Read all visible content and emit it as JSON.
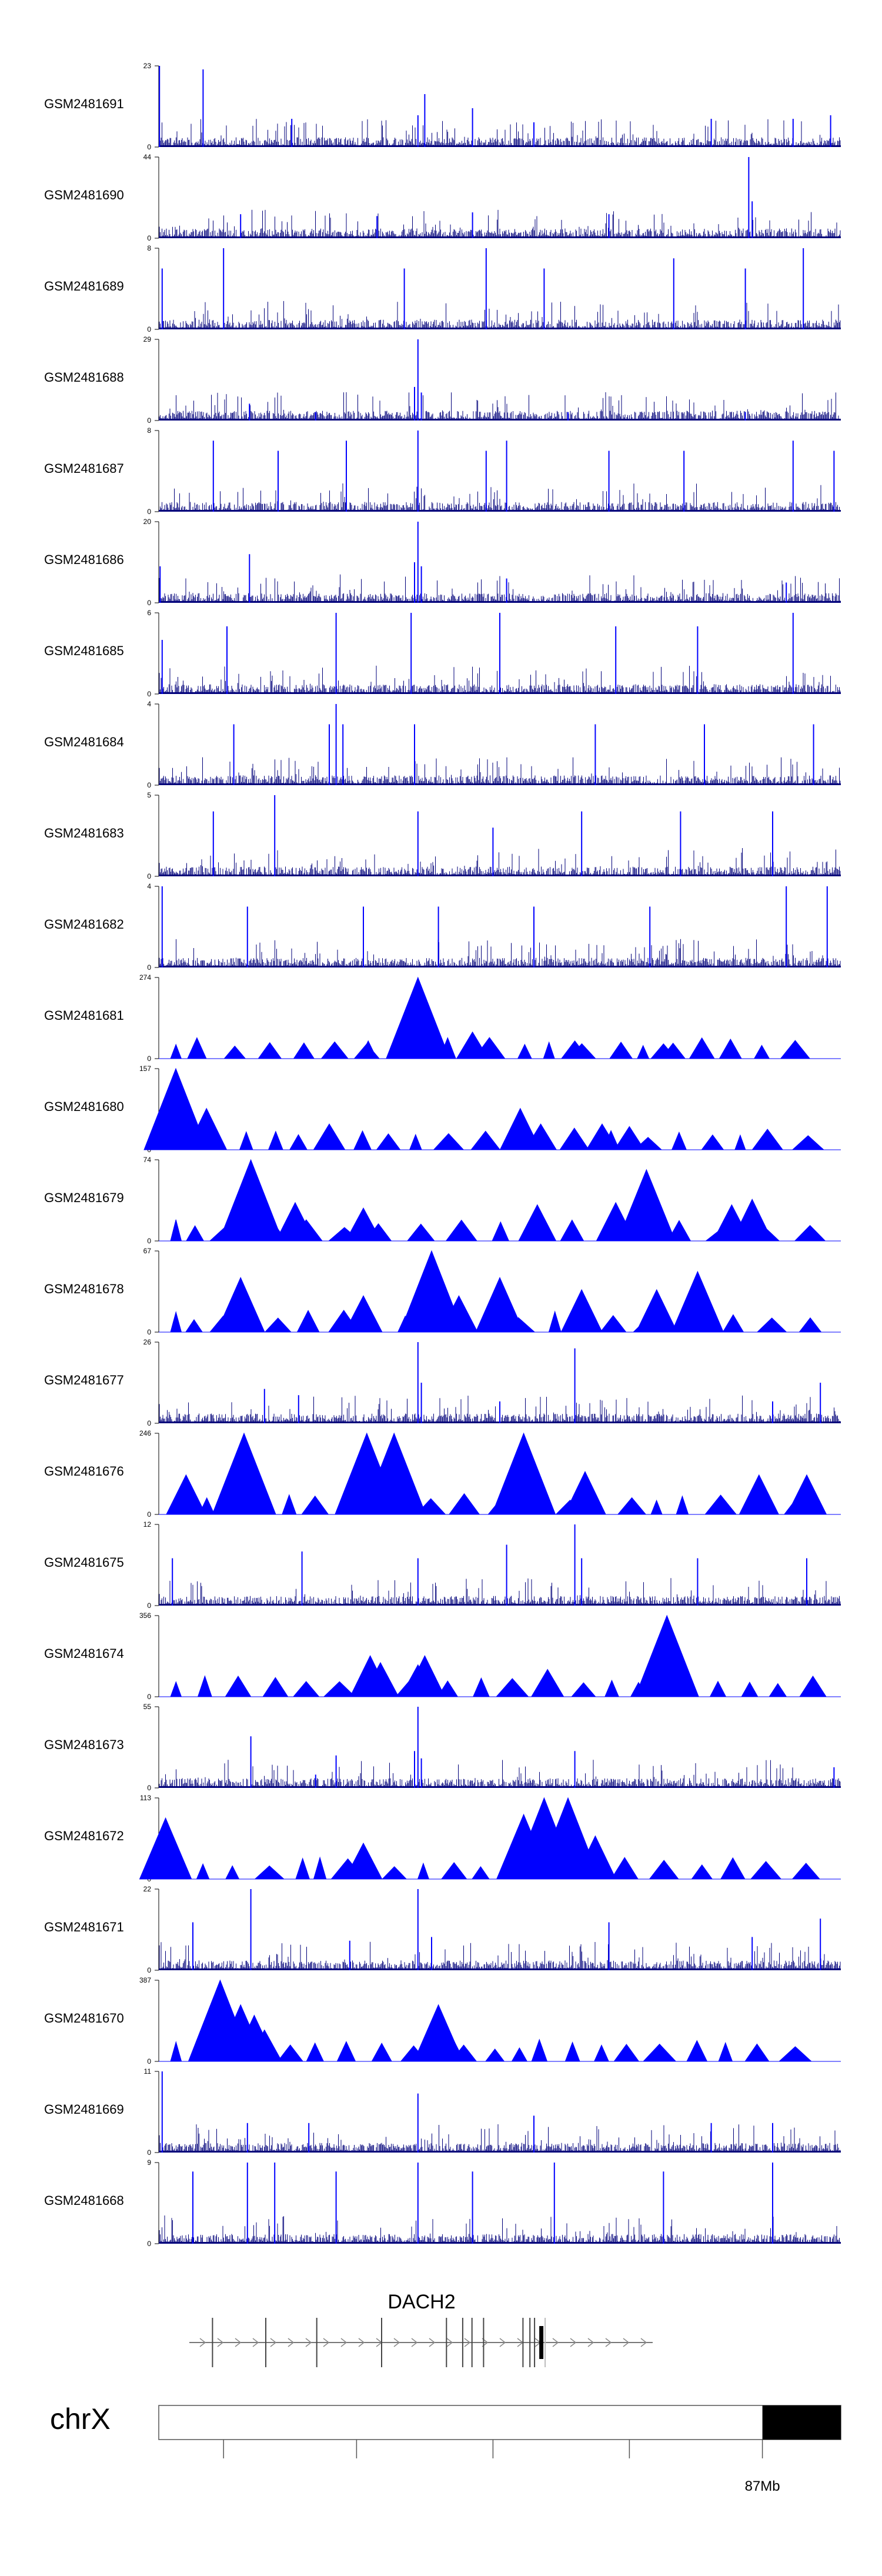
{
  "chart_data": {
    "type": "area",
    "title": "",
    "tracks": [
      {
        "name": "GSM2481691",
        "ymax": 23,
        "style": "dense",
        "peaks": [
          [
            0.001,
            23
          ],
          [
            0.065,
            22
          ],
          [
            0.39,
            15
          ],
          [
            0.38,
            9
          ],
          [
            0.46,
            11
          ],
          [
            0.195,
            8
          ],
          [
            0.55,
            7
          ],
          [
            0.81,
            8
          ],
          [
            0.93,
            8
          ],
          [
            0.985,
            9
          ]
        ]
      },
      {
        "name": "GSM2481690",
        "ymax": 44,
        "style": "dense",
        "peaks": [
          [
            0.865,
            44
          ],
          [
            0.87,
            20
          ],
          [
            0.46,
            14
          ],
          [
            0.12,
            13
          ],
          [
            0.66,
            13
          ],
          [
            0.32,
            12
          ]
        ]
      },
      {
        "name": "GSM2481689",
        "ymax": 8,
        "style": "dense",
        "peaks": [
          [
            0.005,
            6
          ],
          [
            0.095,
            8
          ],
          [
            0.36,
            6
          ],
          [
            0.48,
            8
          ],
          [
            0.755,
            7
          ],
          [
            0.945,
            8
          ],
          [
            0.565,
            6
          ],
          [
            0.86,
            6
          ]
        ]
      },
      {
        "name": "GSM2481688",
        "ymax": 29,
        "style": "dense",
        "peaks": [
          [
            0.38,
            29
          ],
          [
            0.375,
            12
          ],
          [
            0.385,
            10
          ],
          [
            0.133,
            6
          ],
          [
            0.23,
            3
          ],
          [
            0.6,
            3
          ],
          [
            0.86,
            3
          ]
        ]
      },
      {
        "name": "GSM2481687",
        "ymax": 8,
        "style": "dense",
        "peaks": [
          [
            0.38,
            8
          ],
          [
            0.08,
            7
          ],
          [
            0.175,
            6
          ],
          [
            0.275,
            7
          ],
          [
            0.51,
            7
          ],
          [
            0.66,
            6
          ],
          [
            0.77,
            6
          ],
          [
            0.93,
            7
          ],
          [
            0.48,
            6
          ],
          [
            0.99,
            6
          ]
        ]
      },
      {
        "name": "GSM2481686",
        "ymax": 20,
        "style": "dense",
        "peaks": [
          [
            0.38,
            20
          ],
          [
            0.375,
            10
          ],
          [
            0.385,
            9
          ],
          [
            0.133,
            12
          ],
          [
            0.002,
            9
          ],
          [
            0.51,
            6
          ],
          [
            0.92,
            5
          ]
        ]
      },
      {
        "name": "GSM2481685",
        "ymax": 6,
        "style": "dense",
        "peaks": [
          [
            0.1,
            5
          ],
          [
            0.26,
            6
          ],
          [
            0.37,
            6
          ],
          [
            0.5,
            6
          ],
          [
            0.67,
            5
          ],
          [
            0.93,
            6
          ],
          [
            0.79,
            5
          ],
          [
            0.005,
            4
          ]
        ]
      },
      {
        "name": "GSM2481684",
        "ymax": 4,
        "style": "dense",
        "peaks": [
          [
            0.26,
            4
          ],
          [
            0.25,
            3
          ],
          [
            0.27,
            3
          ],
          [
            0.11,
            3
          ],
          [
            0.375,
            3
          ],
          [
            0.64,
            3
          ],
          [
            0.8,
            3
          ],
          [
            0.96,
            3
          ]
        ]
      },
      {
        "name": "GSM2481683",
        "ymax": 5,
        "style": "dense",
        "peaks": [
          [
            0.17,
            5
          ],
          [
            0.08,
            4
          ],
          [
            0.38,
            4
          ],
          [
            0.62,
            4
          ],
          [
            0.765,
            4
          ],
          [
            0.9,
            4
          ],
          [
            0.49,
            3
          ]
        ]
      },
      {
        "name": "GSM2481682",
        "ymax": 4,
        "style": "dense",
        "peaks": [
          [
            0.005,
            4
          ],
          [
            0.92,
            4
          ],
          [
            0.98,
            4
          ],
          [
            0.3,
            3
          ],
          [
            0.41,
            3
          ],
          [
            0.55,
            3
          ],
          [
            0.72,
            3
          ],
          [
            0.13,
            3
          ]
        ]
      },
      {
        "name": "GSM2481681",
        "ymax": 274,
        "style": "tri",
        "peaks": [
          [
            0.38,
            274
          ],
          [
            0.385,
            150
          ],
          [
            0.39,
            80
          ],
          [
            0.37,
            60
          ],
          [
            0.46,
            90
          ],
          [
            0.305,
            50
          ],
          [
            0.61,
            60
          ],
          [
            0.74,
            50
          ]
        ]
      },
      {
        "name": "GSM2481680",
        "ymax": 157,
        "style": "tri",
        "peaks": [
          [
            0.025,
            157
          ],
          [
            0.02,
            110
          ],
          [
            0.07,
            80
          ],
          [
            0.53,
            80
          ],
          [
            0.56,
            50
          ],
          [
            0.25,
            50
          ],
          [
            0.65,
            50
          ],
          [
            0.69,
            45
          ]
        ]
      },
      {
        "name": "GSM2481679",
        "ymax": 74,
        "style": "tri",
        "peaks": [
          [
            0.135,
            74
          ],
          [
            0.715,
            65
          ],
          [
            0.555,
            33
          ],
          [
            0.14,
            45
          ],
          [
            0.3,
            30
          ],
          [
            0.2,
            35
          ],
          [
            0.84,
            33
          ],
          [
            0.87,
            38
          ],
          [
            0.67,
            35
          ]
        ]
      },
      {
        "name": "GSM2481678",
        "ymax": 67,
        "style": "tri",
        "peaks": [
          [
            0.4,
            67
          ],
          [
            0.12,
            45
          ],
          [
            0.5,
            45
          ],
          [
            0.79,
            50
          ],
          [
            0.62,
            35
          ],
          [
            0.73,
            35
          ],
          [
            0.44,
            30
          ],
          [
            0.3,
            30
          ]
        ]
      },
      {
        "name": "GSM2481677",
        "ymax": 26,
        "style": "dense",
        "peaks": [
          [
            0.38,
            26
          ],
          [
            0.61,
            24
          ],
          [
            0.385,
            13
          ],
          [
            0.155,
            11
          ],
          [
            0.205,
            9
          ],
          [
            0.97,
            13
          ],
          [
            0.9,
            7
          ],
          [
            0.5,
            7
          ]
        ]
      },
      {
        "name": "GSM2481676",
        "ymax": 246,
        "style": "tri",
        "peaks": [
          [
            0.125,
            246
          ],
          [
            0.305,
            246
          ],
          [
            0.345,
            246
          ],
          [
            0.535,
            246
          ],
          [
            0.04,
            120
          ],
          [
            0.11,
            120
          ],
          [
            0.625,
            130
          ],
          [
            0.88,
            120
          ],
          [
            0.95,
            120
          ]
        ]
      },
      {
        "name": "GSM2481675",
        "ymax": 12,
        "style": "dense",
        "peaks": [
          [
            0.61,
            12
          ],
          [
            0.51,
            9
          ],
          [
            0.21,
            8
          ],
          [
            0.62,
            7
          ],
          [
            0.79,
            7
          ],
          [
            0.02,
            7
          ],
          [
            0.95,
            7
          ],
          [
            0.38,
            7
          ]
        ]
      },
      {
        "name": "GSM2481674",
        "ymax": 356,
        "style": "tri",
        "peaks": [
          [
            0.745,
            356
          ],
          [
            0.39,
            180
          ],
          [
            0.31,
            180
          ],
          [
            0.325,
            150
          ],
          [
            0.38,
            140
          ],
          [
            0.57,
            120
          ]
        ]
      },
      {
        "name": "GSM2481673",
        "ymax": 55,
        "style": "dense",
        "peaks": [
          [
            0.38,
            55
          ],
          [
            0.375,
            25
          ],
          [
            0.385,
            20
          ],
          [
            0.135,
            35
          ],
          [
            0.26,
            22
          ],
          [
            0.61,
            25
          ],
          [
            0.99,
            14
          ],
          [
            0.23,
            9
          ]
        ]
      },
      {
        "name": "GSM2481672",
        "ymax": 113,
        "style": "tri",
        "peaks": [
          [
            0.565,
            113
          ],
          [
            0.6,
            113
          ],
          [
            0.535,
            90
          ],
          [
            0.01,
            85
          ],
          [
            0.55,
            70
          ],
          [
            0.61,
            75
          ],
          [
            0.64,
            60
          ],
          [
            0.3,
            50
          ]
        ]
      },
      {
        "name": "GSM2481671",
        "ymax": 22,
        "style": "dense",
        "peaks": [
          [
            0.135,
            22
          ],
          [
            0.38,
            22
          ],
          [
            0.05,
            13
          ],
          [
            0.66,
            13
          ],
          [
            0.97,
            14
          ],
          [
            0.87,
            9
          ],
          [
            0.4,
            9
          ],
          [
            0.28,
            8
          ]
        ]
      },
      {
        "name": "GSM2481670",
        "ymax": 387,
        "style": "tri",
        "peaks": [
          [
            0.09,
            387
          ],
          [
            0.12,
            270
          ],
          [
            0.14,
            220
          ],
          [
            0.41,
            270
          ],
          [
            0.42,
            180
          ],
          [
            0.08,
            150
          ],
          [
            0.155,
            150
          ]
        ]
      },
      {
        "name": "GSM2481669",
        "ymax": 11,
        "style": "dense",
        "peaks": [
          [
            0.005,
            11
          ],
          [
            0.38,
            8
          ],
          [
            0.55,
            5
          ],
          [
            0.22,
            4
          ],
          [
            0.81,
            4
          ],
          [
            0.13,
            4
          ],
          [
            0.9,
            4
          ]
        ]
      },
      {
        "name": "GSM2481668",
        "ymax": 9,
        "style": "dense",
        "peaks": [
          [
            0.13,
            9
          ],
          [
            0.17,
            9
          ],
          [
            0.38,
            9
          ],
          [
            0.58,
            9
          ],
          [
            0.9,
            9
          ],
          [
            0.05,
            8
          ],
          [
            0.74,
            8
          ],
          [
            0.46,
            8
          ],
          [
            0.26,
            8
          ]
        ]
      }
    ],
    "gene": {
      "name": "DACH2",
      "strand": "+",
      "exons": [
        0.05,
        0.165,
        0.275,
        0.415,
        0.555,
        0.59,
        0.61,
        0.635,
        0.72,
        0.735,
        0.745
      ]
    },
    "chromosome": {
      "name": "chrX",
      "highlight_range": [
        0.885,
        1.0
      ],
      "tick_positions": [
        0.095,
        0.29,
        0.49,
        0.69,
        0.885
      ],
      "tick_label": "87Mb"
    }
  }
}
